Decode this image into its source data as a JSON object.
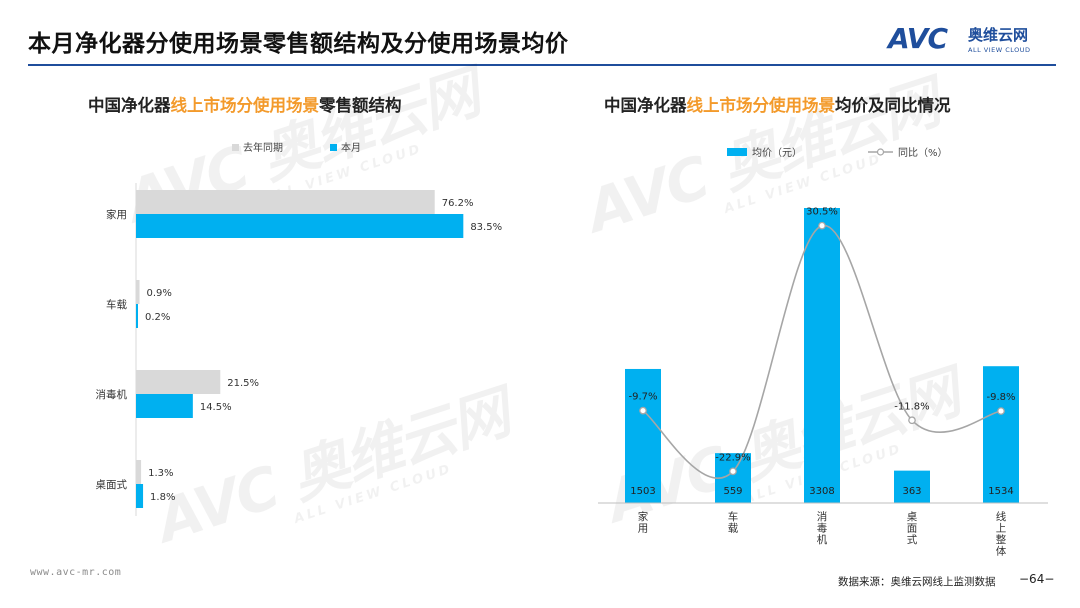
{
  "header": {
    "title": "本月净化器分使用场景零售额结构及分使用场景均价",
    "logo": {
      "mark": "AVC",
      "cn": "奥维云网",
      "en": "ALL VIEW CLOUD"
    }
  },
  "watermark": {
    "big": "AVC 奥维云网",
    "small": "ALL VIEW CLOUD"
  },
  "footer": {
    "url": "www.avc-mr.com",
    "source": "数据来源：奥维云网线上监测数据",
    "page": "−64−"
  },
  "colors": {
    "primary": "#00b0f0",
    "previous": "#d9d9d9",
    "line": "#a6a6a6",
    "accent": "#f39a2b",
    "brand": "#1f4e9c"
  },
  "chart_data": [
    {
      "type": "bar",
      "orientation": "horizontal",
      "title_parts": [
        "中国净化器",
        "线上市场分使用场景",
        "零售额结构"
      ],
      "categories": [
        "家用",
        "车载",
        "消毒机",
        "桌面式"
      ],
      "series": [
        {
          "name": "去年同期",
          "values": [
            76.2,
            0.9,
            21.5,
            1.3
          ],
          "labels": [
            "76.2%",
            "0.9%",
            "21.5%",
            "1.3%"
          ]
        },
        {
          "name": "本月",
          "values": [
            83.5,
            0.2,
            14.5,
            1.8
          ],
          "labels": [
            "83.5%",
            "0.2%",
            "14.5%",
            "1.8%"
          ]
        }
      ],
      "xlim": [
        0,
        100
      ],
      "legend_position": "top"
    },
    {
      "type": "bar+line",
      "title_parts": [
        "中国净化器",
        "线上市场分使用场景",
        "均价及同比情况"
      ],
      "categories": [
        "家用",
        "车载",
        "消毒机",
        "桌面式",
        "线上整体"
      ],
      "series": [
        {
          "name": "均价（元）",
          "type": "bar",
          "values": [
            1503,
            559,
            3308,
            363,
            1534
          ],
          "labels": [
            "1503",
            "559",
            "3308",
            "363",
            "1534"
          ]
        },
        {
          "name": "同比（%）",
          "type": "line",
          "values": [
            -9.7,
            -22.9,
            30.5,
            -11.8,
            -9.8
          ],
          "labels": [
            "-9.7%",
            "-22.9%",
            "30.5%",
            "-11.8%",
            "-9.8%"
          ]
        }
      ],
      "ylim_bar": [
        0,
        3500
      ],
      "ylim_line": [
        -30,
        40
      ],
      "legend_position": "top"
    }
  ]
}
